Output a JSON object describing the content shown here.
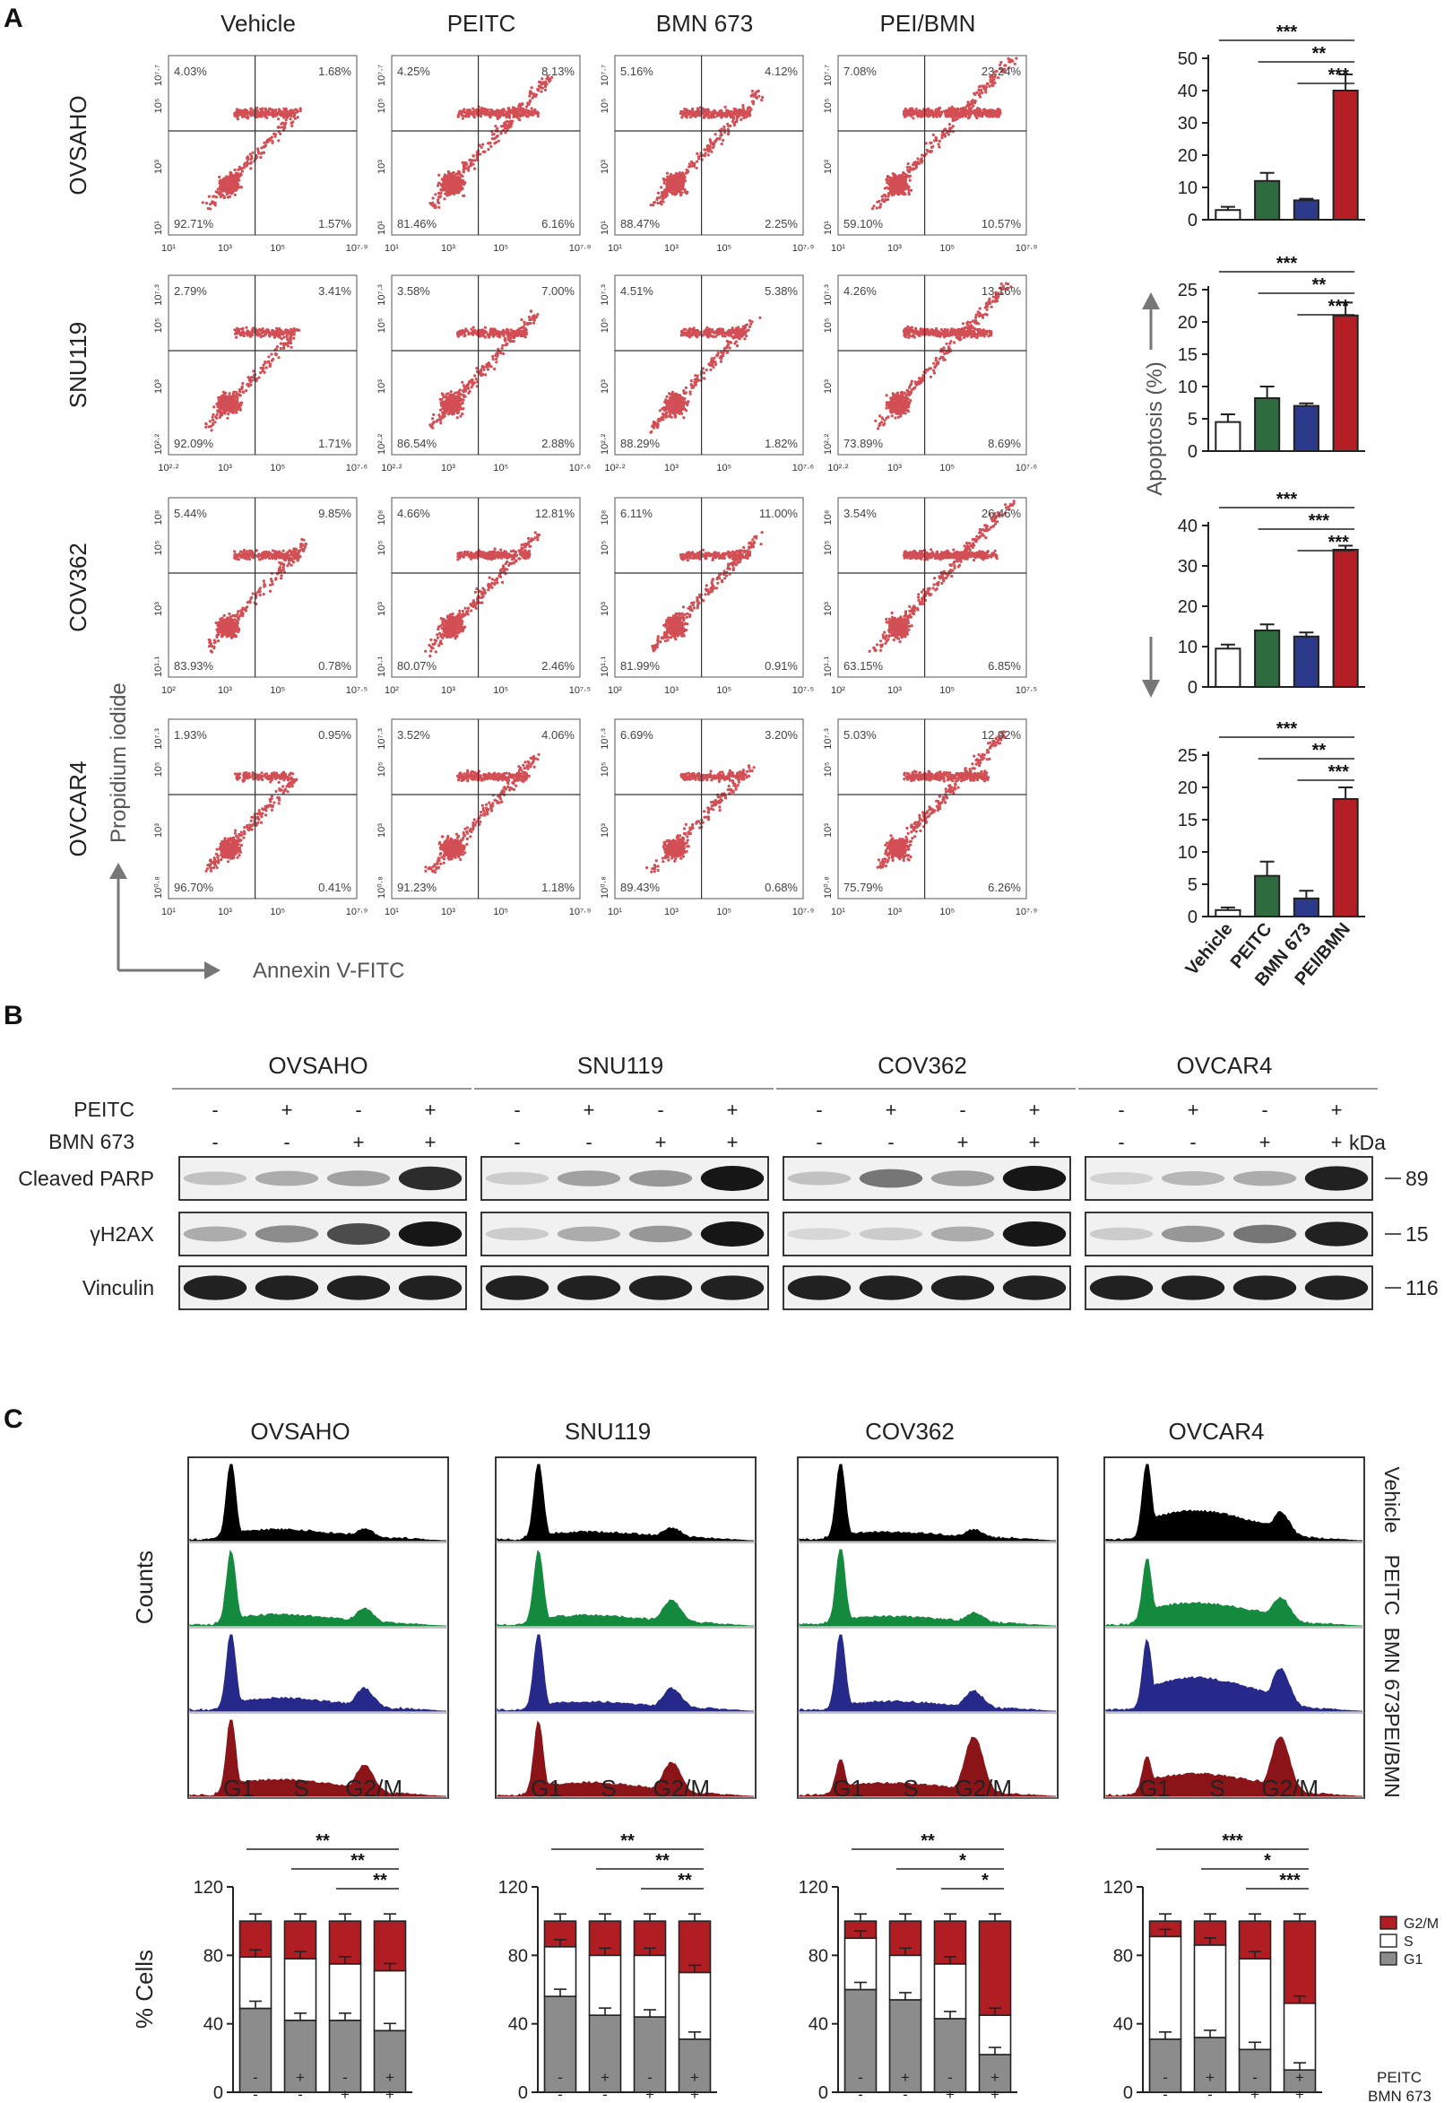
{
  "panelA": {
    "label": "A",
    "columns": [
      "Vehicle",
      "PEITC",
      "BMN 673",
      "PEI/BMN"
    ],
    "rows": [
      {
        "name": "OVSAHO",
        "xmin": "10¹",
        "xmax": "10⁷·⁹",
        "ymin": "10¹",
        "ymax": "10⁷·⁷",
        "quads": [
          [
            "4.03%",
            "1.68%",
            "92.71%",
            "1.57%"
          ],
          [
            "4.25%",
            "8.13%",
            "81.46%",
            "6.16%"
          ],
          [
            "5.16%",
            "4.12%",
            "88.47%",
            "2.25%"
          ],
          [
            "7.08%",
            "23.24%",
            "59.10%",
            "10.57%"
          ]
        ],
        "density": [
          0.4,
          0.75,
          0.55,
          1.0
        ]
      },
      {
        "name": "SNU119",
        "xmin": "10²·²",
        "xmax": "10⁷·⁶",
        "ymin": "10²·²",
        "ymax": "10⁷·³",
        "quads": [
          [
            "2.79%",
            "3.41%",
            "92.09%",
            "1.71%"
          ],
          [
            "3.58%",
            "7.00%",
            "86.54%",
            "2.88%"
          ],
          [
            "4.51%",
            "5.38%",
            "88.29%",
            "1.82%"
          ],
          [
            "4.26%",
            "13.16%",
            "73.89%",
            "8.69%"
          ]
        ],
        "density": [
          0.4,
          0.55,
          0.5,
          0.85
        ]
      },
      {
        "name": "COV362",
        "xmin": "10²",
        "xmax": "10⁷·⁵",
        "ymin": "10¹·¹",
        "ymax": "10⁸",
        "quads": [
          [
            "5.44%",
            "9.85%",
            "83.93%",
            "0.78%"
          ],
          [
            "4.66%",
            "12.81%",
            "80.07%",
            "2.46%"
          ],
          [
            "6.11%",
            "11.00%",
            "81.99%",
            "0.91%"
          ],
          [
            "3.54%",
            "26.46%",
            "63.15%",
            "6.85%"
          ]
        ],
        "density": [
          0.5,
          0.6,
          0.55,
          0.95
        ]
      },
      {
        "name": "OVCAR4",
        "xmin": "10¹",
        "xmax": "10⁷·⁹",
        "ymin": "10⁰·⁸",
        "ymax": "10⁷·³",
        "quads": [
          [
            "1.93%",
            "0.95%",
            "96.70%",
            "0.41%"
          ],
          [
            "3.52%",
            "4.06%",
            "91.23%",
            "1.18%"
          ],
          [
            "6.69%",
            "3.20%",
            "89.43%",
            "0.68%"
          ],
          [
            "5.03%",
            "12.92%",
            "75.79%",
            "6.26%"
          ]
        ],
        "density": [
          0.35,
          0.55,
          0.45,
          0.8
        ]
      }
    ],
    "ylabel": "Propidium iodide",
    "xlabel": "Annexin V-FITC",
    "mid_tick": "10³",
    "mid_tick2": "10⁵"
  },
  "apoptosisBars": {
    "ylabel": "Apoptosis (%)",
    "categories": [
      "Vehicle",
      "PEITC",
      "BMN 673",
      "PEI/BMN"
    ],
    "colors": [
      "#ffffff",
      "#2e6b3f",
      "#2d3a8c",
      "#b41e25"
    ],
    "charts": [
      {
        "ymax": 50,
        "ticks": [
          "0",
          "10",
          "20",
          "30",
          "40",
          "50"
        ],
        "values": [
          3,
          12,
          6,
          40
        ],
        "errors": [
          1,
          2.5,
          0.5,
          5
        ],
        "sig": [
          "***",
          "**",
          "***"
        ]
      },
      {
        "ymax": 25,
        "ticks": [
          "0",
          "5",
          "10",
          "15",
          "20",
          "25"
        ],
        "values": [
          4.5,
          8.2,
          7,
          21
        ],
        "errors": [
          1.2,
          1.8,
          0.4,
          2
        ],
        "sig": [
          "***",
          "**",
          "***"
        ]
      },
      {
        "ymax": 40,
        "ticks": [
          "0",
          "10",
          "20",
          "30",
          "40"
        ],
        "values": [
          9.5,
          14,
          12.5,
          34
        ],
        "errors": [
          1,
          1.5,
          1,
          1
        ],
        "sig": [
          "***",
          "***",
          "***"
        ]
      },
      {
        "ymax": 25,
        "ticks": [
          "0",
          "5",
          "10",
          "15",
          "20",
          "25"
        ],
        "values": [
          1,
          6.3,
          2.8,
          18.2
        ],
        "errors": [
          0.4,
          2.2,
          1.2,
          1.8
        ],
        "sig": [
          "***",
          "**",
          "***"
        ]
      }
    ]
  },
  "panelB": {
    "label": "B",
    "cell_lines": [
      "OVSAHO",
      "SNU119",
      "COV362",
      "OVCAR4"
    ],
    "peitc_label": "PEITC",
    "bmn_label": "BMN 673",
    "peitc": [
      "-",
      "+",
      "-",
      "+"
    ],
    "bmn": [
      "-",
      "-",
      "+",
      "+"
    ],
    "kda_label": "kDa",
    "bands": [
      {
        "name": "Cleaved PARP",
        "kda": "89",
        "intensity": [
          [
            0.2,
            0.3,
            0.35,
            0.9
          ],
          [
            0.15,
            0.35,
            0.4,
            1.0
          ],
          [
            0.2,
            0.55,
            0.35,
            1.0
          ],
          [
            0.12,
            0.25,
            0.3,
            0.95
          ]
        ]
      },
      {
        "name": "γH2AX",
        "kda": "15",
        "intensity": [
          [
            0.3,
            0.45,
            0.75,
            1.0
          ],
          [
            0.15,
            0.3,
            0.4,
            1.0
          ],
          [
            0.1,
            0.15,
            0.3,
            1.0
          ],
          [
            0.15,
            0.4,
            0.55,
            0.95
          ]
        ]
      },
      {
        "name": "Vinculin",
        "kda": "116",
        "intensity": [
          [
            0.95,
            0.95,
            0.95,
            0.95
          ],
          [
            0.95,
            0.95,
            0.95,
            0.95
          ],
          [
            0.95,
            0.95,
            0.95,
            0.95
          ],
          [
            0.95,
            0.95,
            0.95,
            0.95
          ]
        ]
      }
    ]
  },
  "panelC": {
    "label": "C",
    "cell_lines": [
      "OVSAHO",
      "SNU119",
      "COV362",
      "OVCAR4"
    ],
    "ylabel_hist": "Counts",
    "phases": [
      "G1",
      "S",
      "G2/M"
    ],
    "treatments": [
      "Vehicle",
      "PEITC",
      "BMN 673",
      "PEI/BMN"
    ],
    "treatment_colors": [
      "#000000",
      "#148a3e",
      "#26288a",
      "#8b1418"
    ],
    "stack_ylabel": "% Cells",
    "stack_ticks": [
      "0",
      "40",
      "80",
      "120"
    ],
    "stack_ymax": 120,
    "stack_colors": {
      "G1": "#8c8c8c",
      "S": "#ffffff",
      "G2/M": "#b01e23"
    },
    "legend": [
      "G2/M",
      "S",
      "G1"
    ],
    "peitc_label": "PEITC",
    "bmn_label": "BMN 673",
    "peitc": [
      "-",
      "+",
      "-",
      "+"
    ],
    "bmn": [
      "-",
      "-",
      "+",
      "+"
    ],
    "stacks": [
      {
        "g1": [
          49,
          42,
          42,
          36
        ],
        "s": [
          30,
          36,
          33,
          35
        ],
        "g2m": [
          21,
          22,
          25,
          29
        ],
        "sig": [
          "**",
          "**",
          "**"
        ]
      },
      {
        "g1": [
          56,
          45,
          44,
          31
        ],
        "s": [
          29,
          35,
          36,
          39
        ],
        "g2m": [
          15,
          20,
          20,
          30
        ],
        "sig": [
          "**",
          "**",
          "**"
        ]
      },
      {
        "g1": [
          60,
          54,
          43,
          22
        ],
        "s": [
          30,
          26,
          32,
          23
        ],
        "g2m": [
          10,
          20,
          25,
          55
        ],
        "sig": [
          "**",
          "*",
          "*"
        ]
      },
      {
        "g1": [
          31,
          32,
          25,
          13
        ],
        "s": [
          60,
          54,
          53,
          39
        ],
        "g2m": [
          9,
          14,
          22,
          48
        ],
        "sig": [
          "***",
          "*",
          "***"
        ]
      }
    ],
    "hist_shapes": [
      [
        [
          1.0,
          0.25,
          0.12,
          0.15
        ],
        [
          0.95,
          0.25,
          0.12,
          0.25
        ],
        [
          1.0,
          0.3,
          0.15,
          0.35
        ],
        [
          1.0,
          0.35,
          0.3,
          0.5
        ]
      ],
      [
        [
          1.0,
          0.18,
          0.08,
          0.18
        ],
        [
          0.95,
          0.22,
          0.12,
          0.4
        ],
        [
          1.0,
          0.2,
          0.08,
          0.35
        ],
        [
          0.95,
          0.3,
          0.2,
          0.55
        ]
      ],
      [
        [
          1.0,
          0.18,
          0.06,
          0.15
        ],
        [
          1.0,
          0.2,
          0.08,
          0.18
        ],
        [
          1.0,
          0.2,
          0.1,
          0.3
        ],
        [
          0.45,
          0.25,
          0.25,
          1.0
        ]
      ],
      [
        [
          1.0,
          0.7,
          0.55,
          0.45
        ],
        [
          0.85,
          0.5,
          0.45,
          0.45
        ],
        [
          0.9,
          0.75,
          0.7,
          0.7
        ],
        [
          0.5,
          0.45,
          0.5,
          1.0
        ]
      ]
    ]
  }
}
